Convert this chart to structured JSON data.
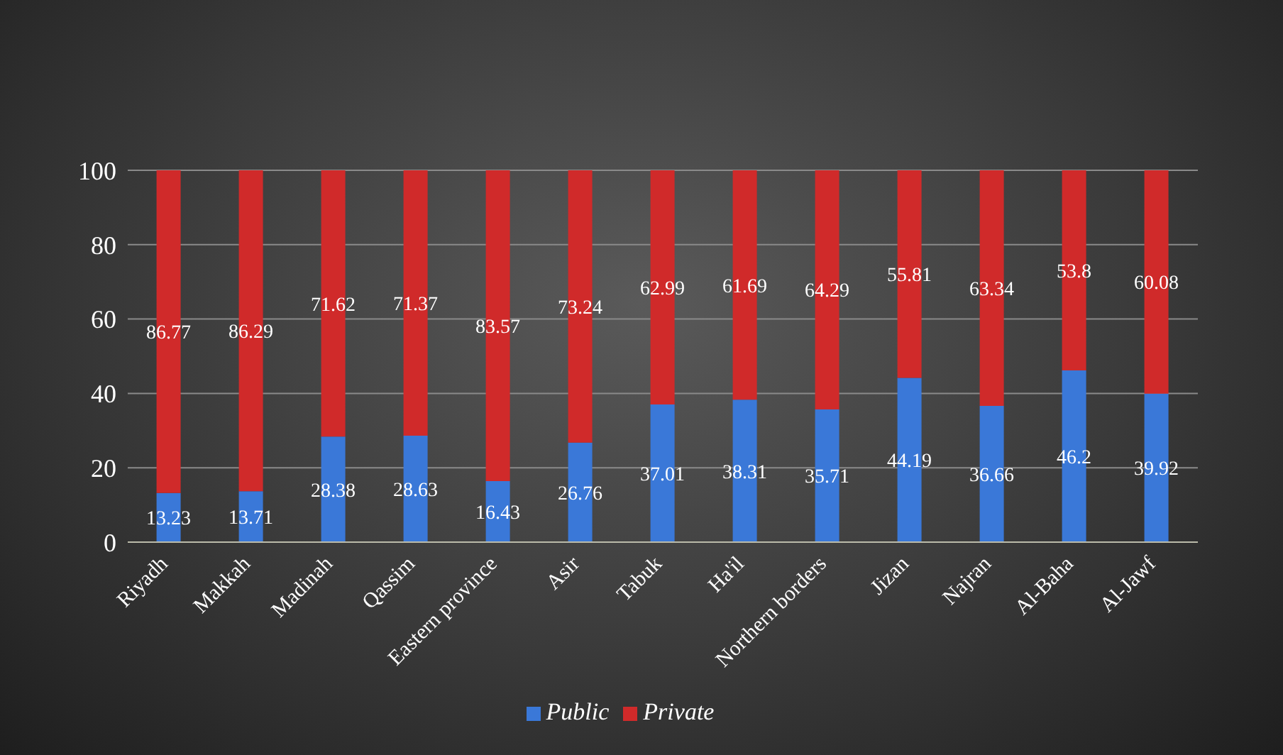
{
  "chart_data": {
    "type": "bar",
    "stacked": true,
    "categories": [
      "Riyadh",
      "Makkah",
      "Madinah",
      "Qassim",
      "Eastern province",
      "Asir",
      "Tabuk",
      "Ha'il",
      "Northern borders",
      "Jizan",
      "Najran",
      "Al-Baha",
      "Al-Jawf"
    ],
    "series": [
      {
        "name": "Public",
        "color": "#3a78d8",
        "values": [
          13.23,
          13.71,
          28.38,
          28.63,
          16.43,
          26.76,
          37.01,
          38.31,
          35.71,
          44.19,
          36.66,
          46.2,
          39.92
        ]
      },
      {
        "name": "Private",
        "color": "#d02a2a",
        "values": [
          86.77,
          86.29,
          71.62,
          71.37,
          83.57,
          73.24,
          62.99,
          61.69,
          64.29,
          55.81,
          63.34,
          53.8,
          60.08
        ]
      }
    ],
    "ylim": [
      0,
      100
    ],
    "yticks": [
      0,
      20,
      40,
      60,
      80,
      100
    ],
    "grid": "y",
    "legend": "bottom",
    "data_labels": true
  }
}
